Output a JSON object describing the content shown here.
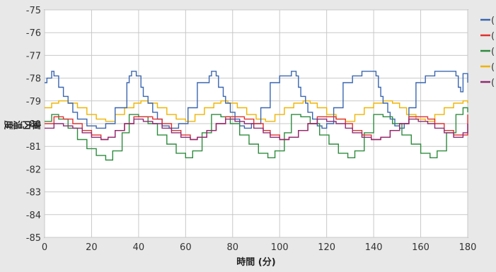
{
  "chart_data": {
    "type": "line",
    "title": "",
    "xlabel": "時間 (分)",
    "ylabel": "庫内温度 (℃)",
    "xlim": [
      0,
      180
    ],
    "ylim": [
      -85,
      -75
    ],
    "grid": true,
    "legend_position": "right",
    "x_ticks": [
      "0",
      "20",
      "40",
      "60",
      "80",
      "100",
      "120",
      "140",
      "160",
      "180"
    ],
    "y_ticks": [
      "-75",
      "-76",
      "-77",
      "-78",
      "-79",
      "-80",
      "-81",
      "-82",
      "-83",
      "-84",
      "-85"
    ],
    "series": [
      {
        "name": "",
        "legend_label": "(",
        "color": "#3a66b0",
        "x": [
          0,
          1,
          3,
          4,
          6,
          8,
          10,
          12,
          14,
          18,
          22,
          26,
          30,
          35,
          36,
          37,
          38,
          39,
          41,
          42,
          44,
          46,
          48,
          50,
          53,
          57,
          61,
          65,
          70,
          71,
          72,
          73,
          74,
          76,
          77,
          79,
          81,
          83,
          85,
          88,
          92,
          96,
          100,
          105,
          106,
          107,
          108,
          109,
          111,
          112,
          114,
          116,
          118,
          120,
          123,
          127,
          131,
          135,
          140,
          141,
          142,
          143,
          144,
          146,
          147,
          149,
          151,
          153,
          155,
          158,
          162,
          166,
          170,
          175,
          176,
          177,
          178,
          179,
          180
        ],
        "y": [
          -78.2,
          -78.0,
          -77.7,
          -77.9,
          -78.4,
          -78.8,
          -79.1,
          -79.5,
          -79.8,
          -80.1,
          -80.2,
          -80.0,
          -79.3,
          -78.2,
          -77.9,
          -77.7,
          -77.7,
          -77.9,
          -78.4,
          -78.8,
          -79.1,
          -79.5,
          -79.8,
          -80.1,
          -80.2,
          -80.0,
          -79.3,
          -78.2,
          -77.9,
          -77.7,
          -77.7,
          -77.9,
          -78.4,
          -78.8,
          -79.1,
          -79.5,
          -79.8,
          -80.1,
          -80.2,
          -80.0,
          -79.3,
          -78.2,
          -77.9,
          -77.7,
          -77.7,
          -77.9,
          -78.4,
          -78.8,
          -79.1,
          -79.5,
          -79.8,
          -80.1,
          -80.2,
          -80.0,
          -79.3,
          -78.2,
          -77.9,
          -77.7,
          -77.7,
          -77.9,
          -78.4,
          -78.8,
          -79.1,
          -79.5,
          -79.8,
          -80.1,
          -80.2,
          -80.0,
          -79.3,
          -78.2,
          -77.9,
          -77.7,
          -77.7,
          -77.9,
          -78.4,
          -78.6,
          -77.8,
          -77.8,
          -78.2
        ]
      },
      {
        "name": "",
        "legend_label": "(",
        "color": "#e03030",
        "x": [
          0,
          4,
          8,
          12,
          16,
          20,
          24,
          27,
          30,
          34,
          38,
          42,
          46,
          50,
          54,
          58,
          62,
          65,
          69,
          73,
          77,
          81,
          85,
          89,
          93,
          96,
          100,
          104,
          108,
          112,
          116,
          120,
          124,
          128,
          131,
          135,
          139,
          143,
          147,
          151,
          155,
          159,
          163,
          166,
          170,
          174,
          178,
          180
        ],
        "y": [
          -80.0,
          -79.7,
          -79.8,
          -80.0,
          -80.3,
          -80.5,
          -80.7,
          -80.6,
          -80.3,
          -80.0,
          -79.7,
          -79.7,
          -79.8,
          -80.0,
          -80.3,
          -80.5,
          -80.7,
          -80.6,
          -80.3,
          -80.0,
          -79.7,
          -79.7,
          -79.8,
          -80.0,
          -80.3,
          -80.5,
          -80.7,
          -80.6,
          -80.3,
          -80.0,
          -79.7,
          -79.7,
          -79.8,
          -80.0,
          -80.3,
          -80.5,
          -80.7,
          -80.6,
          -80.3,
          -80.0,
          -79.7,
          -79.7,
          -79.8,
          -80.0,
          -80.3,
          -80.5,
          -80.5,
          -79.6
        ]
      },
      {
        "name": "",
        "legend_label": "(",
        "color": "#2e8b3e",
        "x": [
          0,
          3,
          6,
          10,
          14,
          18,
          22,
          26,
          29,
          33,
          36,
          40,
          44,
          48,
          52,
          56,
          60,
          63,
          67,
          71,
          75,
          79,
          83,
          87,
          91,
          95,
          98,
          102,
          105,
          109,
          113,
          117,
          121,
          125,
          129,
          132,
          136,
          140,
          144,
          148,
          152,
          156,
          160,
          164,
          167,
          171,
          175,
          178,
          180
        ],
        "y": [
          -79.9,
          -79.6,
          -79.8,
          -80.2,
          -80.7,
          -81.1,
          -81.4,
          -81.6,
          -81.2,
          -80.4,
          -79.6,
          -79.7,
          -80.0,
          -80.5,
          -80.9,
          -81.3,
          -81.5,
          -81.2,
          -80.4,
          -79.6,
          -79.7,
          -80.0,
          -80.5,
          -80.9,
          -81.3,
          -81.5,
          -81.2,
          -80.4,
          -79.6,
          -79.7,
          -80.0,
          -80.5,
          -80.9,
          -81.3,
          -81.5,
          -81.2,
          -80.4,
          -79.6,
          -79.7,
          -80.0,
          -80.5,
          -80.9,
          -81.3,
          -81.5,
          -81.2,
          -80.4,
          -79.6,
          -79.3,
          -79.5
        ]
      },
      {
        "name": "",
        "legend_label": "(",
        "color": "#f0b400",
        "x": [
          0,
          3,
          6,
          10,
          14,
          18,
          22,
          26,
          30,
          34,
          38,
          41,
          44,
          48,
          52,
          56,
          60,
          64,
          68,
          72,
          75,
          78,
          82,
          86,
          90,
          94,
          98,
          102,
          106,
          110,
          113,
          116,
          120,
          124,
          128,
          132,
          136,
          140,
          144,
          148,
          151,
          154,
          158,
          162,
          166,
          170,
          174,
          178,
          180
        ],
        "y": [
          -79.3,
          -79.1,
          -79.0,
          -79.1,
          -79.3,
          -79.6,
          -79.8,
          -79.9,
          -79.6,
          -79.3,
          -79.1,
          -79.0,
          -79.1,
          -79.3,
          -79.6,
          -79.8,
          -79.9,
          -79.6,
          -79.3,
          -79.1,
          -79.0,
          -79.1,
          -79.3,
          -79.6,
          -79.8,
          -79.9,
          -79.6,
          -79.3,
          -79.1,
          -79.0,
          -79.1,
          -79.3,
          -79.6,
          -79.8,
          -79.9,
          -79.6,
          -79.3,
          -79.1,
          -79.0,
          -79.1,
          -79.3,
          -79.6,
          -79.8,
          -79.9,
          -79.6,
          -79.3,
          -79.1,
          -79.0,
          -79.1
        ]
      },
      {
        "name": "",
        "legend_label": "(",
        "color": "#8e2a73",
        "x": [
          0,
          4,
          8,
          12,
          16,
          20,
          24,
          27,
          30,
          34,
          38,
          42,
          46,
          50,
          54,
          58,
          62,
          65,
          69,
          73,
          77,
          81,
          85,
          89,
          93,
          96,
          100,
          104,
          108,
          112,
          116,
          120,
          124,
          128,
          131,
          135,
          139,
          143,
          147,
          151,
          155,
          159,
          163,
          166,
          170,
          174,
          178,
          180
        ],
        "y": [
          -80.2,
          -80.0,
          -80.1,
          -80.2,
          -80.4,
          -80.6,
          -80.7,
          -80.6,
          -80.3,
          -80.0,
          -79.8,
          -79.9,
          -80.0,
          -80.2,
          -80.4,
          -80.6,
          -80.7,
          -80.6,
          -80.3,
          -80.0,
          -79.8,
          -79.9,
          -80.0,
          -80.2,
          -80.4,
          -80.6,
          -80.7,
          -80.6,
          -80.3,
          -80.0,
          -79.8,
          -79.9,
          -80.0,
          -80.2,
          -80.4,
          -80.6,
          -80.7,
          -80.6,
          -80.3,
          -80.0,
          -79.8,
          -79.9,
          -80.0,
          -80.2,
          -80.4,
          -80.6,
          -80.4,
          -80.0
        ]
      }
    ]
  }
}
